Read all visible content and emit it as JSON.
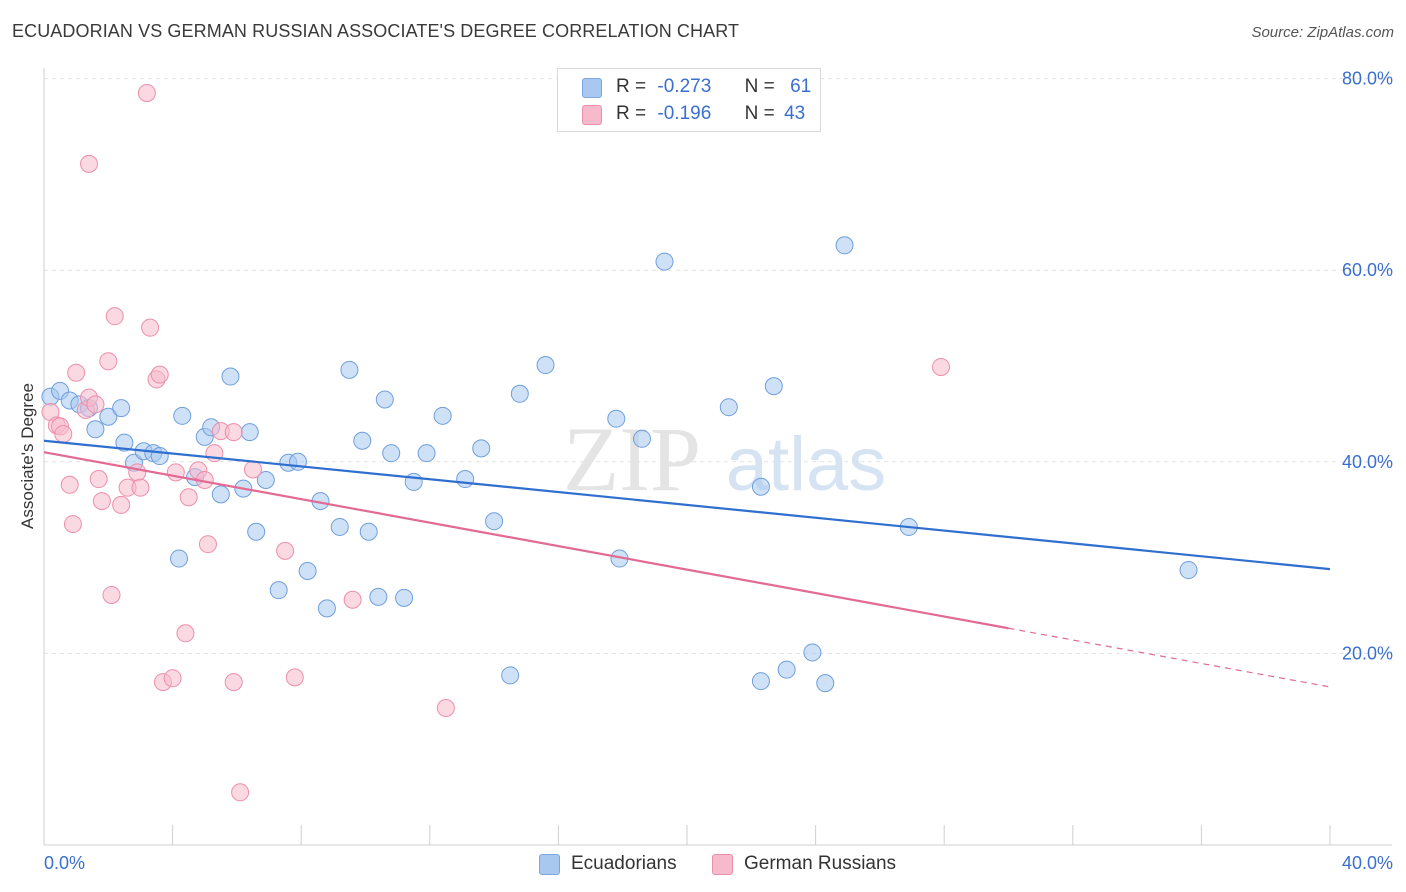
{
  "title": "ECUADORIAN VS GERMAN RUSSIAN ASSOCIATE'S DEGREE CORRELATION CHART",
  "source": "Source: ZipAtlas.com",
  "watermark": {
    "zip": "ZIP",
    "atlas": "atlas"
  },
  "legend": {
    "r_label": "R =",
    "n_label": "N =",
    "rows": [
      {
        "r": "-0.273",
        "n": "61",
        "color": "#a8c8f0",
        "border": "#7ca6e0"
      },
      {
        "r": "-0.196",
        "n": "43",
        "color": "#f7b9cc",
        "border": "#ec8fab"
      }
    ]
  },
  "bottom_legend": [
    {
      "label": "Ecuadorians",
      "color": "#a8c8f0",
      "border": "#7ca6e0"
    },
    {
      "label": "German Russians",
      "color": "#f7b9cc",
      "border": "#ec8fab"
    }
  ],
  "chart_data": {
    "type": "scatter",
    "title": "ECUADORIAN VS GERMAN RUSSIAN ASSOCIATE'S DEGREE CORRELATION CHART",
    "xlabel": "",
    "ylabel": "Associate's Degree",
    "xlim": [
      0,
      40
    ],
    "ylim": [
      0,
      80
    ],
    "x_tick_labels": [
      "0.0%",
      "40.0%"
    ],
    "y_ticks": [
      20,
      40,
      60,
      80
    ],
    "y_tick_labels": [
      "20.0%",
      "40.0%",
      "60.0%",
      "80.0%"
    ],
    "grid": true,
    "series": [
      {
        "name": "Ecuadorians",
        "color": "#a8c8f0",
        "stroke": "#6f9fdc",
        "line_color": "#2e6fcf",
        "trend": {
          "x0": 0,
          "y0": 42.2,
          "x1": 40,
          "y1": 28.8
        },
        "points": [
          [
            0.2,
            46.8
          ],
          [
            0.5,
            47.4
          ],
          [
            0.8,
            46.4
          ],
          [
            1.1,
            46.0
          ],
          [
            1.4,
            45.6
          ],
          [
            2.0,
            44.7
          ],
          [
            2.4,
            45.6
          ],
          [
            1.6,
            43.4
          ],
          [
            2.5,
            42.0
          ],
          [
            2.8,
            39.9
          ],
          [
            3.1,
            41.1
          ],
          [
            3.4,
            40.9
          ],
          [
            3.6,
            40.6
          ],
          [
            4.2,
            29.9
          ],
          [
            4.3,
            44.8
          ],
          [
            4.7,
            38.4
          ],
          [
            5.0,
            42.6
          ],
          [
            5.2,
            43.6
          ],
          [
            5.5,
            36.6
          ],
          [
            5.8,
            48.9
          ],
          [
            6.2,
            37.2
          ],
          [
            6.4,
            43.1
          ],
          [
            6.6,
            32.7
          ],
          [
            6.9,
            38.1
          ],
          [
            7.3,
            26.6
          ],
          [
            7.6,
            39.9
          ],
          [
            7.9,
            40.0
          ],
          [
            8.2,
            28.6
          ],
          [
            8.6,
            35.9
          ],
          [
            8.8,
            24.7
          ],
          [
            9.2,
            33.2
          ],
          [
            9.5,
            49.6
          ],
          [
            9.9,
            42.2
          ],
          [
            10.1,
            32.7
          ],
          [
            10.4,
            25.9
          ],
          [
            10.6,
            46.5
          ],
          [
            10.8,
            40.9
          ],
          [
            11.2,
            25.8
          ],
          [
            11.5,
            37.9
          ],
          [
            11.9,
            40.9
          ],
          [
            12.4,
            44.8
          ],
          [
            13.1,
            38.2
          ],
          [
            13.6,
            41.4
          ],
          [
            14.0,
            33.8
          ],
          [
            14.5,
            17.7
          ],
          [
            14.8,
            47.1
          ],
          [
            15.6,
            50.1
          ],
          [
            17.8,
            44.5
          ],
          [
            17.9,
            29.9
          ],
          [
            18.6,
            42.4
          ],
          [
            19.3,
            60.9
          ],
          [
            21.3,
            45.7
          ],
          [
            22.3,
            17.1
          ],
          [
            22.3,
            37.4
          ],
          [
            22.7,
            47.9
          ],
          [
            23.1,
            18.3
          ],
          [
            23.9,
            20.1
          ],
          [
            24.3,
            16.9
          ],
          [
            24.9,
            62.6
          ],
          [
            26.9,
            33.2
          ],
          [
            35.6,
            28.7
          ]
        ]
      },
      {
        "name": "German Russians",
        "color": "#f7b9cc",
        "stroke": "#ec8fab",
        "line_color": "#e26a93",
        "trend": {
          "x0": 0,
          "y0": 41.0,
          "x1": 40,
          "y1": 16.5,
          "solid_until_x": 30.0
        },
        "points": [
          [
            0.2,
            45.2
          ],
          [
            0.4,
            43.8
          ],
          [
            0.5,
            43.7
          ],
          [
            0.6,
            42.9
          ],
          [
            0.8,
            37.6
          ],
          [
            0.9,
            33.5
          ],
          [
            1.0,
            49.3
          ],
          [
            1.3,
            45.4
          ],
          [
            1.4,
            46.7
          ],
          [
            1.6,
            46.0
          ],
          [
            1.7,
            38.2
          ],
          [
            1.8,
            35.9
          ],
          [
            2.0,
            50.5
          ],
          [
            2.1,
            26.1
          ],
          [
            2.2,
            55.2
          ],
          [
            2.4,
            35.5
          ],
          [
            2.6,
            37.3
          ],
          [
            2.9,
            38.9
          ],
          [
            3.0,
            37.3
          ],
          [
            3.2,
            78.5
          ],
          [
            3.3,
            54.0
          ],
          [
            3.5,
            48.6
          ],
          [
            3.6,
            49.1
          ],
          [
            3.7,
            17.0
          ],
          [
            4.0,
            17.4
          ],
          [
            4.1,
            38.9
          ],
          [
            4.4,
            22.1
          ],
          [
            4.5,
            36.3
          ],
          [
            4.8,
            39.1
          ],
          [
            5.0,
            38.1
          ],
          [
            5.1,
            31.4
          ],
          [
            5.3,
            40.9
          ],
          [
            5.5,
            43.2
          ],
          [
            5.9,
            43.1
          ],
          [
            5.9,
            17.0
          ],
          [
            6.1,
            5.5
          ],
          [
            6.5,
            39.2
          ],
          [
            7.5,
            30.7
          ],
          [
            7.8,
            17.5
          ],
          [
            9.6,
            25.6
          ],
          [
            12.5,
            14.3
          ],
          [
            1.4,
            71.1
          ],
          [
            27.9,
            49.9
          ]
        ]
      }
    ]
  }
}
